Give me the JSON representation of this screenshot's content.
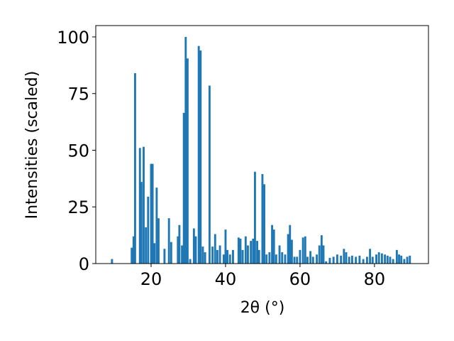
{
  "chart_data": {
    "type": "bar",
    "xlabel": "2θ (°)",
    "ylabel": "Intensities (scaled)",
    "color": "#1f77b4",
    "xlim": [
      5.14,
      94.5
    ],
    "ylim": [
      0,
      105
    ],
    "xticks": [
      20,
      40,
      60,
      80
    ],
    "yticks": [
      0,
      25,
      50,
      75,
      100
    ],
    "x": [
      9.5,
      14.8,
      15.3,
      15.7,
      17.0,
      17.4,
      18.0,
      18.6,
      19.2,
      20.0,
      20.4,
      20.9,
      21.5,
      22.0,
      23.6,
      24.8,
      25.4,
      27.2,
      27.6,
      28.3,
      28.8,
      29.3,
      29.8,
      30.5,
      31.5,
      32.0,
      32.8,
      33.3,
      33.9,
      34.5,
      35.7,
      36.5,
      37.2,
      37.8,
      38.5,
      39.5,
      40.0,
      40.5,
      41.2,
      42.0,
      43.5,
      44.0,
      44.6,
      45.4,
      46.0,
      46.8,
      47.4,
      47.9,
      48.5,
      49.0,
      49.9,
      50.4,
      51.0,
      51.8,
      52.5,
      53.0,
      53.6,
      54.5,
      55.2,
      56.0,
      56.8,
      57.3,
      57.8,
      58.5,
      59.2,
      60.0,
      60.8,
      61.4,
      62.0,
      62.8,
      63.5,
      64.5,
      65.2,
      65.8,
      66.3,
      67.0,
      68.0,
      69.0,
      70.0,
      71.0,
      71.8,
      72.4,
      73.2,
      74.0,
      75.0,
      76.0,
      77.0,
      78.0,
      78.8,
      79.5,
      80.5,
      81.2,
      82.0,
      82.8,
      83.5,
      84.2,
      85.0,
      86.0,
      86.6,
      87.2,
      88.0,
      88.8,
      89.5
    ],
    "values": [
      2,
      7,
      12,
      84,
      51,
      36,
      51.5,
      16,
      29.5,
      44,
      44,
      9,
      33.5,
      20,
      6.5,
      20,
      9.5,
      12,
      17,
      8,
      66.5,
      100,
      90.5,
      2,
      15.5,
      12,
      96,
      94,
      7.5,
      5,
      78.5,
      7.5,
      13,
      6,
      8,
      4,
      15,
      6,
      4,
      6,
      11.5,
      11,
      6,
      12,
      8,
      10,
      11,
      40.5,
      10,
      6,
      39.5,
      35,
      4,
      5,
      17,
      15,
      4,
      8,
      5,
      4,
      13,
      17,
      10.5,
      3,
      3,
      6,
      11.5,
      12,
      3,
      5.5,
      3,
      4,
      8,
      12.5,
      8,
      1,
      2.5,
      3,
      4,
      3.5,
      6.5,
      5,
      3,
      3.5,
      3,
      3.5,
      2,
      3,
      6.5,
      3,
      4,
      5,
      4.5,
      4,
      3.5,
      3,
      2,
      6,
      4,
      3.5,
      2,
      3,
      3.5
    ]
  }
}
